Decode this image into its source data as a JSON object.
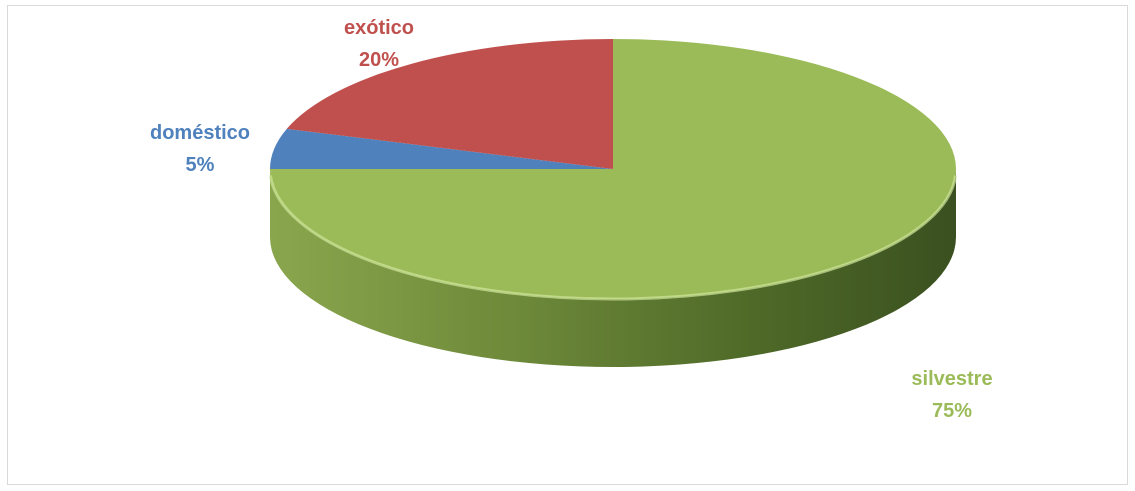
{
  "chart_data": {
    "type": "pie",
    "title": "",
    "slices": [
      {
        "label": "silvestre",
        "value": 75,
        "value_label": "75%",
        "color": "#9bbb59",
        "label_color": "#9bbb59"
      },
      {
        "label": "doméstico",
        "value": 5,
        "value_label": "5%",
        "color": "#4f81bd",
        "label_color": "#4f81bd"
      },
      {
        "label": "exótico",
        "value": 20,
        "value_label": "20%",
        "color": "#c0504d",
        "label_color": "#c0504d"
      }
    ],
    "style": "3d",
    "legend": "none"
  }
}
